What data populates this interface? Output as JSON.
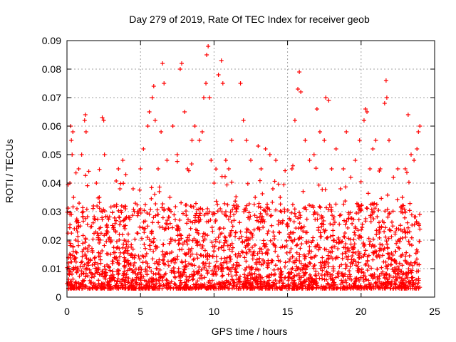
{
  "chart_data": {
    "type": "scatter",
    "title": "Day 279 of 2019, Rate Of TEC Index for receiver geob",
    "xlabel": "GPS time / hours",
    "ylabel": "ROTI / TECUs",
    "xlim": [
      0,
      25
    ],
    "ylim": [
      0,
      0.09
    ],
    "grid": true,
    "marker": "+",
    "color": "#ff0000",
    "x_ticks": [
      {
        "value": 0,
        "label": "0"
      },
      {
        "value": 5,
        "label": "5"
      },
      {
        "value": 10,
        "label": "10"
      },
      {
        "value": 15,
        "label": "15"
      },
      {
        "value": 20,
        "label": "20"
      },
      {
        "value": 25,
        "label": "25"
      }
    ],
    "y_ticks": [
      {
        "value": 0,
        "label": "0"
      },
      {
        "value": 0.01,
        "label": "0.01"
      },
      {
        "value": 0.02,
        "label": "0.02"
      },
      {
        "value": 0.03,
        "label": "0.03"
      },
      {
        "value": 0.04,
        "label": "0.04"
      },
      {
        "value": 0.05,
        "label": "0.05"
      },
      {
        "value": 0.06,
        "label": "0.06"
      },
      {
        "value": 0.07,
        "label": "0.07"
      },
      {
        "value": 0.08,
        "label": "0.08"
      },
      {
        "value": 0.09,
        "label": "0.09"
      }
    ],
    "series": [
      {
        "name": "ROTI",
        "points": [
          [
            0.1,
            0.012
          ],
          [
            0.2,
            0.04
          ],
          [
            0.25,
            0.06
          ],
          [
            0.3,
            0.055
          ],
          [
            0.35,
            0.05
          ],
          [
            0.4,
            0.058
          ],
          [
            0.45,
            0.035
          ],
          [
            0.5,
            0.024
          ],
          [
            0.6,
            0.02
          ],
          [
            0.8,
            0.045
          ],
          [
            1.0,
            0.05
          ],
          [
            1.1,
            0.03
          ],
          [
            1.2,
            0.062
          ],
          [
            1.25,
            0.064
          ],
          [
            1.3,
            0.058
          ],
          [
            1.5,
            0.018
          ],
          [
            1.8,
            0.032
          ],
          [
            2.0,
            0.04
          ],
          [
            2.2,
            0.035
          ],
          [
            2.4,
            0.063
          ],
          [
            2.5,
            0.062
          ],
          [
            2.55,
            0.05
          ],
          [
            2.7,
            0.025
          ],
          [
            3.0,
            0.02
          ],
          [
            3.2,
            0.032
          ],
          [
            3.5,
            0.045
          ],
          [
            3.6,
            0.038
          ],
          [
            3.8,
            0.048
          ],
          [
            4.0,
            0.043
          ],
          [
            4.2,
            0.028
          ],
          [
            4.5,
            0.038
          ],
          [
            4.8,
            0.03
          ],
          [
            5.0,
            0.045
          ],
          [
            5.2,
            0.052
          ],
          [
            5.5,
            0.06
          ],
          [
            5.6,
            0.065
          ],
          [
            5.8,
            0.07
          ],
          [
            5.9,
            0.074
          ],
          [
            6.0,
            0.062
          ],
          [
            6.2,
            0.045
          ],
          [
            6.4,
            0.058
          ],
          [
            6.5,
            0.082
          ],
          [
            6.6,
            0.075
          ],
          [
            6.8,
            0.048
          ],
          [
            7.0,
            0.035
          ],
          [
            7.2,
            0.06
          ],
          [
            7.5,
            0.05
          ],
          [
            7.7,
            0.08
          ],
          [
            7.8,
            0.082
          ],
          [
            8.0,
            0.065
          ],
          [
            8.2,
            0.045
          ],
          [
            8.5,
            0.055
          ],
          [
            8.7,
            0.06
          ],
          [
            9.0,
            0.055
          ],
          [
            9.2,
            0.058
          ],
          [
            9.3,
            0.07
          ],
          [
            9.45,
            0.075
          ],
          [
            9.5,
            0.085
          ],
          [
            9.6,
            0.088
          ],
          [
            9.7,
            0.07
          ],
          [
            9.8,
            0.048
          ],
          [
            10.0,
            0.04
          ],
          [
            10.3,
            0.078
          ],
          [
            10.5,
            0.083
          ],
          [
            10.6,
            0.075
          ],
          [
            10.8,
            0.048
          ],
          [
            11.0,
            0.045
          ],
          [
            11.2,
            0.055
          ],
          [
            11.5,
            0.03
          ],
          [
            11.8,
            0.075
          ],
          [
            12.0,
            0.062
          ],
          [
            12.2,
            0.055
          ],
          [
            12.5,
            0.048
          ],
          [
            12.8,
            0.035
          ],
          [
            13.0,
            0.053
          ],
          [
            13.2,
            0.045
          ],
          [
            13.5,
            0.052
          ],
          [
            13.8,
            0.05
          ],
          [
            14.0,
            0.038
          ],
          [
            14.2,
            0.048
          ],
          [
            14.5,
            0.035
          ],
          [
            14.8,
            0.03
          ],
          [
            15.0,
            0.025
          ],
          [
            15.3,
            0.045
          ],
          [
            15.5,
            0.062
          ],
          [
            15.7,
            0.073
          ],
          [
            15.8,
            0.079
          ],
          [
            15.9,
            0.072
          ],
          [
            16.2,
            0.055
          ],
          [
            16.5,
            0.048
          ],
          [
            16.8,
            0.05
          ],
          [
            17.0,
            0.066
          ],
          [
            17.2,
            0.058
          ],
          [
            17.5,
            0.055
          ],
          [
            17.6,
            0.07
          ],
          [
            17.8,
            0.069
          ],
          [
            18.0,
            0.045
          ],
          [
            18.3,
            0.052
          ],
          [
            18.6,
            0.038
          ],
          [
            18.8,
            0.045
          ],
          [
            19.0,
            0.058
          ],
          [
            19.3,
            0.042
          ],
          [
            19.6,
            0.048
          ],
          [
            19.9,
            0.055
          ],
          [
            20.2,
            0.062
          ],
          [
            20.3,
            0.066
          ],
          [
            20.4,
            0.065
          ],
          [
            20.6,
            0.045
          ],
          [
            20.8,
            0.052
          ],
          [
            21.0,
            0.055
          ],
          [
            21.3,
            0.045
          ],
          [
            21.6,
            0.068
          ],
          [
            21.7,
            0.076
          ],
          [
            21.75,
            0.07
          ],
          [
            21.9,
            0.055
          ],
          [
            22.2,
            0.042
          ],
          [
            22.5,
            0.045
          ],
          [
            22.8,
            0.035
          ],
          [
            23.0,
            0.045
          ],
          [
            23.2,
            0.064
          ],
          [
            23.4,
            0.05
          ],
          [
            23.6,
            0.048
          ],
          [
            23.8,
            0.052
          ],
          [
            23.9,
            0.058
          ],
          [
            24.0,
            0.06
          ]
        ]
      }
    ]
  }
}
